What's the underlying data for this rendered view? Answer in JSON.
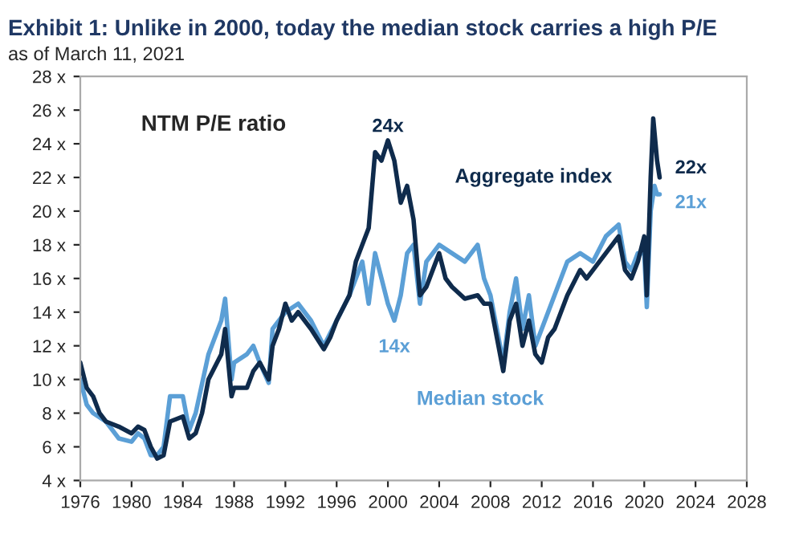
{
  "chart_data": {
    "type": "line",
    "title": "Exhibit 1: Unlike in 2000, today the median stock carries a high P/E",
    "subtitle": "as of March 11, 2021",
    "annotations": [
      "NTM P/E ratio",
      {
        "text": "24x",
        "x": 2000,
        "y": 24.2
      },
      {
        "text": "14x",
        "x": 2000.5,
        "y": 13.5
      },
      {
        "text": "22x",
        "x": 2021.2,
        "y": 22
      },
      {
        "text": "21x",
        "x": 2021.2,
        "y": 21
      }
    ],
    "xlim": [
      1976,
      2028
    ],
    "xticks": [
      1976,
      1980,
      1984,
      1988,
      1992,
      1996,
      2000,
      2004,
      2008,
      2012,
      2016,
      2020,
      2024,
      2028
    ],
    "ylim": [
      4,
      28
    ],
    "yticks": [
      {
        "value": 4,
        "label": "4 x"
      },
      {
        "value": 6,
        "label": "6 x"
      },
      {
        "value": 8,
        "label": "8 x"
      },
      {
        "value": 10,
        "label": "10 x"
      },
      {
        "value": 12,
        "label": "12 x"
      },
      {
        "value": 14,
        "label": "14 x"
      },
      {
        "value": 16,
        "label": "16 x"
      },
      {
        "value": 18,
        "label": "18 x"
      },
      {
        "value": 20,
        "label": "20 x"
      },
      {
        "value": 22,
        "label": "22 x"
      },
      {
        "value": 24,
        "label": "24 x"
      },
      {
        "value": 26,
        "label": "26 x"
      },
      {
        "value": 28,
        "label": "28 x"
      }
    ],
    "grid": false,
    "legend": false,
    "series": [
      {
        "name": "Median stock",
        "color": "#5b9fd6",
        "x": [
          1976,
          1976.5,
          1977,
          1978,
          1979,
          1980,
          1980.5,
          1981,
          1981.5,
          1982,
          1982.5,
          1983,
          1984,
          1984.5,
          1985,
          1986,
          1987,
          1987.3,
          1987.8,
          1988,
          1989,
          1989.5,
          1990,
          1990.7,
          1991,
          1992,
          1993,
          1994,
          1995,
          1996,
          1997,
          1998,
          1998.5,
          1999,
          1999.5,
          2000,
          2000.5,
          2001,
          2001.5,
          2002,
          2002.5,
          2003,
          2004,
          2005,
          2006,
          2007,
          2007.5,
          2008,
          2009,
          2009.5,
          2010,
          2010.5,
          2011,
          2011.5,
          2012,
          2013,
          2014,
          2015,
          2016,
          2017,
          2018,
          2018.5,
          2019,
          2019.5,
          2020,
          2020.2,
          2020.5,
          2020.8,
          2021,
          2021.2
        ],
        "values": [
          10,
          8.5,
          8,
          7.5,
          6.5,
          6.3,
          6.8,
          6.5,
          5.5,
          5.5,
          6,
          9,
          9,
          7,
          8,
          11.5,
          13.5,
          14.8,
          10,
          11,
          11.5,
          12,
          11,
          9.8,
          13,
          14,
          14.5,
          13.5,
          12,
          13.5,
          15,
          17,
          14.5,
          17.5,
          16,
          14.5,
          13.5,
          15,
          17.5,
          18,
          14.5,
          17,
          18,
          17.5,
          17,
          18,
          16,
          15,
          11,
          14,
          16,
          13,
          15,
          12,
          13,
          15,
          17,
          17.5,
          17,
          18.5,
          19.2,
          17,
          16.5,
          17.5,
          17.5,
          14.3,
          20,
          21.5,
          21,
          21
        ]
      },
      {
        "name": "Aggregate index",
        "color": "#0f2b4c",
        "x": [
          1976,
          1976.5,
          1977,
          1977.5,
          1978,
          1979,
          1980,
          1980.5,
          1981,
          1981.5,
          1982,
          1982.5,
          1983,
          1984,
          1984.5,
          1985,
          1985.5,
          1986,
          1987,
          1987.3,
          1987.8,
          1988,
          1989,
          1989.5,
          1990,
          1990.7,
          1991,
          1991.5,
          1992,
          1992.5,
          1993,
          1994,
          1995,
          1995.5,
          1996,
          1997,
          1997.5,
          1998,
          1998.5,
          1999,
          1999.5,
          2000,
          2000.5,
          2001,
          2001.5,
          2002,
          2002.5,
          2003,
          2003.5,
          2004,
          2004.5,
          2005,
          2006,
          2007,
          2007.5,
          2008,
          2008.5,
          2009,
          2009.5,
          2010,
          2010.5,
          2011,
          2011.5,
          2012,
          2012.5,
          2013,
          2013.5,
          2014,
          2015,
          2015.5,
          2016,
          2017,
          2018,
          2018.5,
          2019,
          2019.5,
          2020,
          2020.2,
          2020.5,
          2020.7,
          2021,
          2021.2
        ],
        "values": [
          11,
          9.5,
          9,
          8,
          7.5,
          7.2,
          6.8,
          7.2,
          7,
          6,
          5.3,
          5.5,
          7.5,
          7.8,
          6.5,
          6.8,
          8,
          10,
          11.5,
          13,
          9,
          9.5,
          9.5,
          10.5,
          11,
          10,
          12,
          13,
          14.5,
          13.5,
          14,
          13,
          11.8,
          12.5,
          13.5,
          15,
          17,
          18,
          19,
          23.5,
          23,
          24.2,
          23,
          20.5,
          21.5,
          19.5,
          15,
          15.5,
          16.5,
          17.5,
          16,
          15.5,
          14.8,
          15,
          14.5,
          14.5,
          12.5,
          10.5,
          13.5,
          14.5,
          12,
          13.5,
          11.5,
          11,
          12.5,
          13,
          14,
          15,
          16.5,
          16,
          16.5,
          17.5,
          18.5,
          16.5,
          16,
          17,
          18.5,
          15,
          22,
          25.5,
          23,
          22
        ]
      }
    ]
  }
}
